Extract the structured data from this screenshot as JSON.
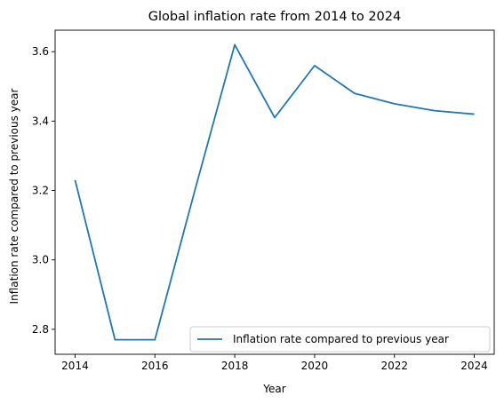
{
  "chart_data": {
    "type": "line",
    "title": "Global inflation rate from 2014 to 2024",
    "xlabel": "Year",
    "ylabel": "Inflation rate compared to previous year",
    "x": [
      2014,
      2015,
      2016,
      2017,
      2018,
      2019,
      2020,
      2021,
      2022,
      2023,
      2024
    ],
    "series": [
      {
        "name": "Inflation rate compared to previous year",
        "color": "#1f77b4",
        "values": [
          3.23,
          2.77,
          2.77,
          3.2,
          3.62,
          3.41,
          3.56,
          3.48,
          3.45,
          3.43,
          3.42
        ]
      }
    ],
    "xlim": [
      2013.5,
      2024.5
    ],
    "ylim": [
      2.728,
      3.662
    ],
    "xticks": [
      2014,
      2016,
      2018,
      2020,
      2022,
      2024
    ],
    "yticks": [
      2.8,
      3.0,
      3.2,
      3.4,
      3.6
    ],
    "ytick_labels": [
      "2.8",
      "3.0",
      "3.2",
      "3.4",
      "3.6"
    ],
    "grid": false,
    "legend_position": "lower-right"
  }
}
